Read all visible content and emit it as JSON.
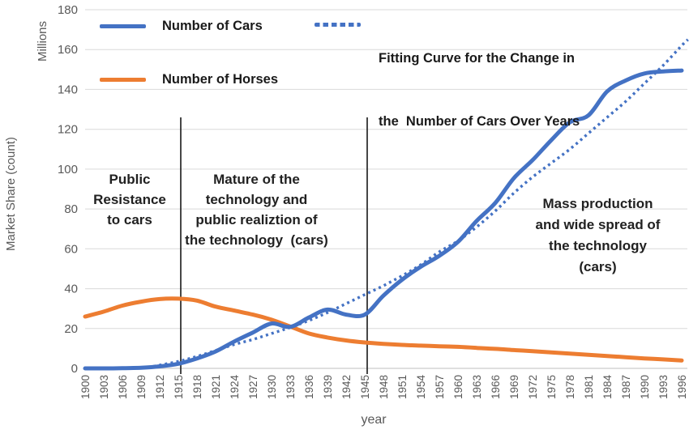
{
  "figure": {
    "y_unit_label": "Millions",
    "y_axis_title": "Market Share (count)",
    "x_axis_title": "year"
  },
  "legend": {
    "cars": "Number of Cars",
    "horses": "Number of Horses",
    "fitting_line1": "Fitting Curve for the Change in",
    "fitting_line2": "the  Number of Cars Over Years"
  },
  "annotations": {
    "phase1": [
      "Public",
      "Resistance",
      "to cars"
    ],
    "phase2": [
      "Mature of the",
      "technology and",
      "public realiztion of",
      "the technology  (cars)"
    ],
    "phase3": [
      "Mass production",
      "and wide spread of",
      "the technology",
      "(cars)"
    ]
  },
  "colors": {
    "cars_line": "#4472C4",
    "horses_line": "#ED7D31",
    "fitting_line": "#4472C4",
    "gridline": "#D9D9D9",
    "axis_line": "#BFBFBF",
    "axis_text": "#595959",
    "annotation_text": "#212121",
    "phase_marker": "#262626"
  },
  "chart_data": {
    "type": "line",
    "title": "",
    "xlabel": "year",
    "ylabel": "Market Share (count)",
    "y_unit": "Millions",
    "ylim": [
      0,
      180
    ],
    "y_ticks": [
      0,
      20,
      40,
      60,
      80,
      100,
      120,
      140,
      160,
      180
    ],
    "grid": true,
    "legend_position": "top-inside",
    "categories": [
      1900,
      1903,
      1906,
      1909,
      1912,
      1915,
      1918,
      1921,
      1924,
      1927,
      1930,
      1933,
      1936,
      1939,
      1942,
      1945,
      1948,
      1951,
      1954,
      1957,
      1960,
      1963,
      1966,
      1969,
      1972,
      1975,
      1978,
      1981,
      1984,
      1987,
      1990,
      1993,
      1996
    ],
    "phase_markers": [
      1915,
      1945
    ],
    "series": [
      {
        "name": "Number of Cars",
        "color": "#4472C4",
        "style": "solid",
        "values": [
          0,
          0,
          0.1,
          0.3,
          1,
          2.3,
          5,
          8.5,
          13.5,
          18,
          22.5,
          20.8,
          25.5,
          29.5,
          27,
          27,
          36.5,
          44.5,
          51,
          56.5,
          63.5,
          74,
          83,
          95.5,
          104.5,
          114.5,
          123.5,
          127,
          139,
          144.5,
          148,
          149,
          149.5
        ]
      },
      {
        "name": "Number of Horses",
        "color": "#ED7D31",
        "style": "solid",
        "values": [
          26,
          28.5,
          31.5,
          33.5,
          34.8,
          35,
          34,
          31,
          29,
          27,
          24.4,
          21,
          17.5,
          15.5,
          14,
          13,
          12.3,
          11.8,
          11.4,
          11.1,
          10.8,
          10.3,
          9.8,
          9.2,
          8.6,
          8,
          7.4,
          6.8,
          6.2,
          5.6,
          5,
          4.5,
          4
        ]
      },
      {
        "name": "Fitting Curve for the Change in the  Number of Cars Over Years",
        "color": "#4472C4",
        "style": "dotted",
        "x": [
          1911,
          1915,
          1918,
          1921,
          1924,
          1927,
          1930,
          1933,
          1936,
          1939,
          1942,
          1945,
          1948,
          1951,
          1954,
          1957,
          1960,
          1963,
          1966,
          1969,
          1972,
          1975,
          1978,
          1981,
          1984,
          1987,
          1990,
          1993,
          1996,
          1997
        ],
        "values": [
          1,
          3.5,
          6,
          9,
          12,
          14.5,
          17.5,
          20.5,
          24,
          28,
          32.5,
          37,
          41.5,
          46.5,
          52,
          58.5,
          64,
          71,
          79,
          88,
          96,
          103,
          110,
          118,
          126,
          134,
          143,
          152,
          162,
          165
        ]
      }
    ]
  }
}
